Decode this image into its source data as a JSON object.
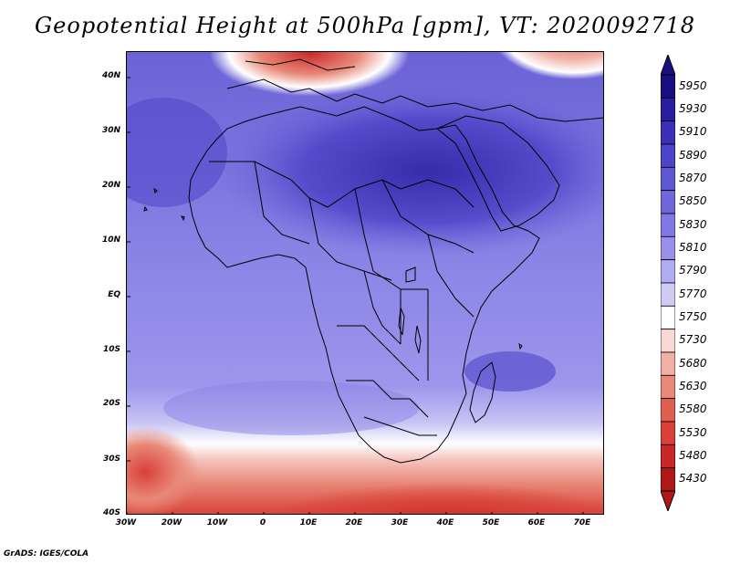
{
  "title": "Geopotential Height at 500hPa [gpm], VT: 2020092718",
  "footer": "GrADS: IGES/COLA",
  "map": {
    "region": "Africa",
    "lat_labels": [
      "40N",
      "30N",
      "20N",
      "10N",
      "EQ",
      "10S",
      "20S",
      "30S",
      "40S"
    ],
    "lon_labels": [
      "30W",
      "20W",
      "10W",
      "0",
      "10E",
      "20E",
      "30E",
      "40E",
      "50E",
      "60E",
      "70E"
    ]
  },
  "colorbar": {
    "levels": [
      "5950",
      "5930",
      "5910",
      "5890",
      "5870",
      "5850",
      "5830",
      "5810",
      "5790",
      "5770",
      "5750",
      "5730",
      "5680",
      "5630",
      "5580",
      "5530",
      "5480",
      "5430"
    ],
    "colors": [
      "#1a0f80",
      "#2a1ea0",
      "#3c2fb8",
      "#4e44c8",
      "#6058d2",
      "#7068da",
      "#8078e2",
      "#9890ea",
      "#b0acf0",
      "#d0ccf6",
      "#ffffff",
      "#f8d8d2",
      "#f0b0a4",
      "#e88878",
      "#e06050",
      "#d84038",
      "#c82828",
      "#b01818"
    ]
  }
}
